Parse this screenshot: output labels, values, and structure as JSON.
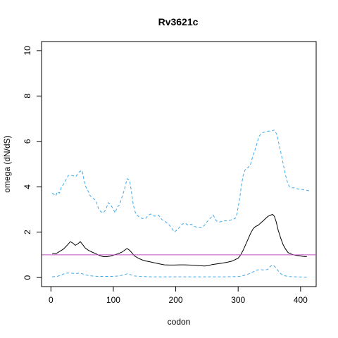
{
  "chart_data": {
    "type": "line",
    "title": "Rv3621c",
    "xlabel": "codon",
    "ylabel": "omega (dN/dS)",
    "xlim": [
      -15,
      425
    ],
    "ylim": [
      -0.4,
      10.4
    ],
    "x_ticks": [
      0,
      100,
      200,
      300,
      400
    ],
    "y_ticks": [
      0,
      2,
      4,
      6,
      8,
      10
    ],
    "x_tick_labels": [
      "0",
      "100",
      "200",
      "300",
      "400"
    ],
    "y_tick_labels": [
      "0",
      "2",
      "4",
      "6",
      "8",
      "10"
    ],
    "grid": false,
    "reference_line": {
      "y": 1,
      "color": "#c04fc0"
    },
    "series": [
      {
        "role": "upper",
        "style": "dashed",
        "color": "#3fa9e8",
        "points": [
          [
            2,
            3.72
          ],
          [
            8,
            3.6
          ],
          [
            10,
            3.78
          ],
          [
            14,
            3.72
          ],
          [
            17,
            4.0
          ],
          [
            20,
            4.1
          ],
          [
            24,
            4.3
          ],
          [
            28,
            4.5
          ],
          [
            34,
            4.5
          ],
          [
            40,
            4.45
          ],
          [
            45,
            4.65
          ],
          [
            50,
            4.72
          ],
          [
            53,
            4.3
          ],
          [
            57,
            3.9
          ],
          [
            60,
            3.8
          ],
          [
            63,
            3.6
          ],
          [
            67,
            3.5
          ],
          [
            72,
            3.4
          ],
          [
            76,
            3.05
          ],
          [
            80,
            2.9
          ],
          [
            84,
            2.85
          ],
          [
            88,
            3.0
          ],
          [
            92,
            3.3
          ],
          [
            96,
            3.2
          ],
          [
            100,
            3.0
          ],
          [
            103,
            2.85
          ],
          [
            106,
            3.1
          ],
          [
            110,
            3.2
          ],
          [
            114,
            3.55
          ],
          [
            118,
            3.9
          ],
          [
            122,
            4.35
          ],
          [
            126,
            4.3
          ],
          [
            129,
            3.8
          ],
          [
            132,
            3.2
          ],
          [
            136,
            2.8
          ],
          [
            140,
            2.7
          ],
          [
            146,
            2.6
          ],
          [
            152,
            2.6
          ],
          [
            156,
            2.75
          ],
          [
            160,
            2.8
          ],
          [
            166,
            2.7
          ],
          [
            172,
            2.75
          ],
          [
            178,
            2.55
          ],
          [
            184,
            2.45
          ],
          [
            190,
            2.3
          ],
          [
            194,
            2.15
          ],
          [
            198,
            2.0
          ],
          [
            202,
            2.1
          ],
          [
            206,
            2.2
          ],
          [
            210,
            2.35
          ],
          [
            215,
            2.4
          ],
          [
            220,
            2.3
          ],
          [
            225,
            2.35
          ],
          [
            230,
            2.25
          ],
          [
            236,
            2.2
          ],
          [
            242,
            2.2
          ],
          [
            246,
            2.3
          ],
          [
            250,
            2.45
          ],
          [
            255,
            2.6
          ],
          [
            260,
            2.75
          ],
          [
            265,
            2.5
          ],
          [
            270,
            2.45
          ],
          [
            278,
            2.5
          ],
          [
            284,
            2.5
          ],
          [
            290,
            2.55
          ],
          [
            295,
            2.6
          ],
          [
            298,
            2.8
          ],
          [
            302,
            3.4
          ],
          [
            305,
            4.0
          ],
          [
            308,
            4.5
          ],
          [
            312,
            4.8
          ],
          [
            316,
            4.85
          ],
          [
            320,
            5.0
          ],
          [
            323,
            5.3
          ],
          [
            326,
            5.55
          ],
          [
            329,
            5.8
          ],
          [
            333,
            6.2
          ],
          [
            337,
            6.35
          ],
          [
            341,
            6.4
          ],
          [
            347,
            6.45
          ],
          [
            353,
            6.45
          ],
          [
            358,
            6.5
          ],
          [
            362,
            6.3
          ],
          [
            366,
            5.8
          ],
          [
            370,
            5.3
          ],
          [
            373,
            4.9
          ],
          [
            376,
            4.5
          ],
          [
            379,
            4.2
          ],
          [
            382,
            4.0
          ],
          [
            386,
            3.95
          ],
          [
            390,
            3.95
          ],
          [
            396,
            3.9
          ],
          [
            402,
            3.88
          ],
          [
            408,
            3.85
          ],
          [
            414,
            3.82
          ]
        ]
      },
      {
        "role": "estimate",
        "style": "solid",
        "color": "#000000",
        "points": [
          [
            2,
            1.05
          ],
          [
            8,
            1.05
          ],
          [
            14,
            1.15
          ],
          [
            20,
            1.25
          ],
          [
            26,
            1.42
          ],
          [
            31,
            1.58
          ],
          [
            35,
            1.52
          ],
          [
            39,
            1.42
          ],
          [
            43,
            1.48
          ],
          [
            47,
            1.58
          ],
          [
            51,
            1.45
          ],
          [
            55,
            1.3
          ],
          [
            60,
            1.2
          ],
          [
            66,
            1.12
          ],
          [
            72,
            1.05
          ],
          [
            78,
            0.97
          ],
          [
            84,
            0.92
          ],
          [
            90,
            0.92
          ],
          [
            96,
            0.95
          ],
          [
            102,
            1.0
          ],
          [
            108,
            1.05
          ],
          [
            114,
            1.12
          ],
          [
            118,
            1.2
          ],
          [
            122,
            1.28
          ],
          [
            126,
            1.2
          ],
          [
            130,
            1.08
          ],
          [
            134,
            0.95
          ],
          [
            140,
            0.85
          ],
          [
            146,
            0.78
          ],
          [
            152,
            0.73
          ],
          [
            158,
            0.7
          ],
          [
            166,
            0.65
          ],
          [
            174,
            0.6
          ],
          [
            182,
            0.56
          ],
          [
            190,
            0.55
          ],
          [
            198,
            0.55
          ],
          [
            206,
            0.56
          ],
          [
            214,
            0.56
          ],
          [
            222,
            0.55
          ],
          [
            230,
            0.54
          ],
          [
            238,
            0.52
          ],
          [
            246,
            0.51
          ],
          [
            252,
            0.52
          ],
          [
            258,
            0.57
          ],
          [
            266,
            0.6
          ],
          [
            274,
            0.63
          ],
          [
            282,
            0.67
          ],
          [
            290,
            0.72
          ],
          [
            296,
            0.8
          ],
          [
            300,
            0.85
          ],
          [
            304,
            1.0
          ],
          [
            308,
            1.2
          ],
          [
            312,
            1.45
          ],
          [
            316,
            1.7
          ],
          [
            320,
            1.95
          ],
          [
            324,
            2.15
          ],
          [
            328,
            2.25
          ],
          [
            332,
            2.3
          ],
          [
            336,
            2.4
          ],
          [
            340,
            2.5
          ],
          [
            344,
            2.6
          ],
          [
            348,
            2.7
          ],
          [
            352,
            2.75
          ],
          [
            355,
            2.78
          ],
          [
            358,
            2.7
          ],
          [
            361,
            2.45
          ],
          [
            364,
            2.1
          ],
          [
            368,
            1.75
          ],
          [
            372,
            1.45
          ],
          [
            376,
            1.25
          ],
          [
            380,
            1.1
          ],
          [
            386,
            1.02
          ],
          [
            392,
            0.98
          ],
          [
            398,
            0.96
          ],
          [
            404,
            0.93
          ],
          [
            410,
            0.92
          ]
        ]
      },
      {
        "role": "lower",
        "style": "dashed",
        "color": "#3fa9e8",
        "points": [
          [
            2,
            0.03
          ],
          [
            10,
            0.05
          ],
          [
            16,
            0.1
          ],
          [
            22,
            0.18
          ],
          [
            28,
            0.2
          ],
          [
            34,
            0.19
          ],
          [
            40,
            0.17
          ],
          [
            46,
            0.2
          ],
          [
            52,
            0.15
          ],
          [
            58,
            0.1
          ],
          [
            66,
            0.07
          ],
          [
            76,
            0.05
          ],
          [
            90,
            0.05
          ],
          [
            100,
            0.05
          ],
          [
            108,
            0.07
          ],
          [
            114,
            0.1
          ],
          [
            120,
            0.15
          ],
          [
            124,
            0.17
          ],
          [
            128,
            0.12
          ],
          [
            134,
            0.07
          ],
          [
            142,
            0.05
          ],
          [
            160,
            0.03
          ],
          [
            190,
            0.03
          ],
          [
            220,
            0.03
          ],
          [
            250,
            0.03
          ],
          [
            280,
            0.03
          ],
          [
            300,
            0.04
          ],
          [
            308,
            0.08
          ],
          [
            316,
            0.15
          ],
          [
            324,
            0.25
          ],
          [
            330,
            0.33
          ],
          [
            336,
            0.35
          ],
          [
            342,
            0.32
          ],
          [
            348,
            0.37
          ],
          [
            352,
            0.5
          ],
          [
            356,
            0.55
          ],
          [
            360,
            0.45
          ],
          [
            364,
            0.3
          ],
          [
            368,
            0.17
          ],
          [
            374,
            0.08
          ],
          [
            382,
            0.04
          ],
          [
            392,
            0.03
          ],
          [
            404,
            0.02
          ],
          [
            412,
            0.02
          ]
        ]
      }
    ]
  }
}
